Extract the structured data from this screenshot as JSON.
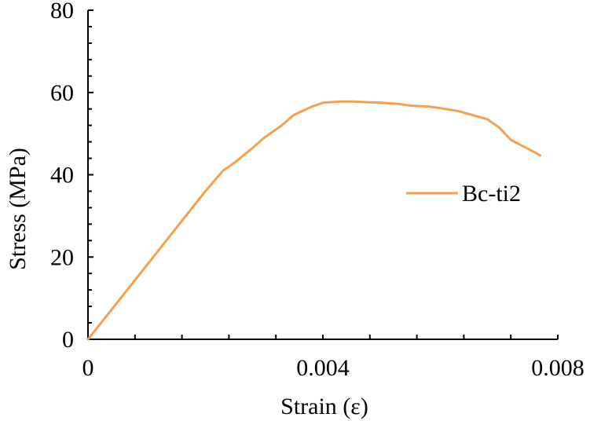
{
  "chart_data": {
    "type": "line",
    "title": "",
    "xlabel": "Strain (ε)",
    "ylabel": "Stress (MPa)",
    "xlim": [
      0,
      0.008
    ],
    "ylim": [
      0,
      80
    ],
    "x_ticks": [
      0,
      0.004,
      0.008
    ],
    "x_tick_labels": [
      "0",
      "0.004",
      "0.008"
    ],
    "y_ticks": [
      0,
      20,
      40,
      60,
      80
    ],
    "y_tick_labels": [
      "0",
      "20",
      "40",
      "60",
      "80"
    ],
    "x_minor_step": 0.0008,
    "y_minor_step": 4,
    "grid": false,
    "legend_position": "right",
    "series": [
      {
        "name": "Bc-ti2",
        "color": "#F5A04E",
        "x": [
          0,
          0.0005,
          0.001,
          0.0015,
          0.002,
          0.0023,
          0.0025,
          0.0028,
          0.003,
          0.0033,
          0.0035,
          0.0038,
          0.004,
          0.0043,
          0.0045,
          0.0048,
          0.005,
          0.0053,
          0.0055,
          0.0058,
          0.006,
          0.0063,
          0.0065,
          0.0068,
          0.007,
          0.0072,
          0.0074,
          0.0076,
          0.0077
        ],
        "y": [
          0,
          9,
          18,
          27,
          36,
          41,
          43,
          46.5,
          49,
          52,
          54.5,
          56.5,
          57.5,
          57.8,
          57.8,
          57.6,
          57.5,
          57.2,
          56.8,
          56.6,
          56.2,
          55.5,
          54.7,
          53.5,
          51.5,
          48.5,
          47,
          45.5,
          44.7
        ]
      }
    ]
  }
}
